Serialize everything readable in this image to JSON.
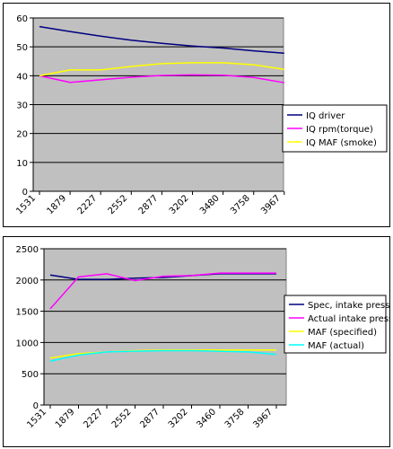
{
  "chart_data": [
    {
      "type": "line",
      "title": "",
      "xlabel": "",
      "ylabel": "",
      "categories": [
        "1531",
        "1879",
        "2227",
        "2552",
        "2877",
        "3202",
        "3480",
        "3758",
        "3967"
      ],
      "ylim": [
        0,
        60
      ],
      "yticks": [
        0,
        10,
        20,
        30,
        40,
        50,
        60
      ],
      "grid": "horizontal",
      "legend": "right",
      "plot_background": "#c0c0c0",
      "series": [
        {
          "name": "IQ driver",
          "color": "#000080",
          "values": [
            57,
            55.3,
            53.7,
            52.3,
            51.2,
            50.3,
            49.6,
            48.6,
            47.8
          ]
        },
        {
          "name": "IQ rpm(torque)",
          "color": "#ff00ff",
          "values": [
            40,
            37.7,
            38.6,
            39.5,
            40.1,
            40.3,
            40.2,
            39.4,
            37.6
          ]
        },
        {
          "name": "IQ MAF (smoke)",
          "color": "#ffff00",
          "values": [
            40,
            42,
            42,
            43.2,
            44.2,
            44.5,
            44.5,
            43.8,
            42.2
          ]
        }
      ]
    },
    {
      "type": "line",
      "title": "",
      "xlabel": "",
      "ylabel": "",
      "categories": [
        "1531",
        "1879",
        "2227",
        "2552",
        "2877",
        "3202",
        "3460",
        "3758",
        "3967"
      ],
      "ylim": [
        0,
        2500
      ],
      "yticks": [
        0,
        500,
        1000,
        1500,
        2000,
        2500
      ],
      "grid": "horizontal",
      "legend": "right",
      "plot_background": "#c0c0c0",
      "series": [
        {
          "name": "Spec, intake press,",
          "color": "#000080",
          "values": [
            2080,
            2010,
            2010,
            2030,
            2040,
            2070,
            2100,
            2100,
            2100
          ]
        },
        {
          "name": "Actual intake press",
          "color": "#ff00ff",
          "values": [
            1540,
            2050,
            2100,
            1990,
            2060,
            2070,
            2110,
            2110,
            2110
          ]
        },
        {
          "name": "MAF (specified)",
          "color": "#ffff00",
          "values": [
            750,
            820,
            850,
            870,
            880,
            880,
            880,
            880,
            880
          ]
        },
        {
          "name": "MAF (actual)",
          "color": "#00ffff",
          "values": [
            700,
            800,
            850,
            860,
            870,
            870,
            860,
            850,
            810
          ]
        }
      ]
    }
  ]
}
